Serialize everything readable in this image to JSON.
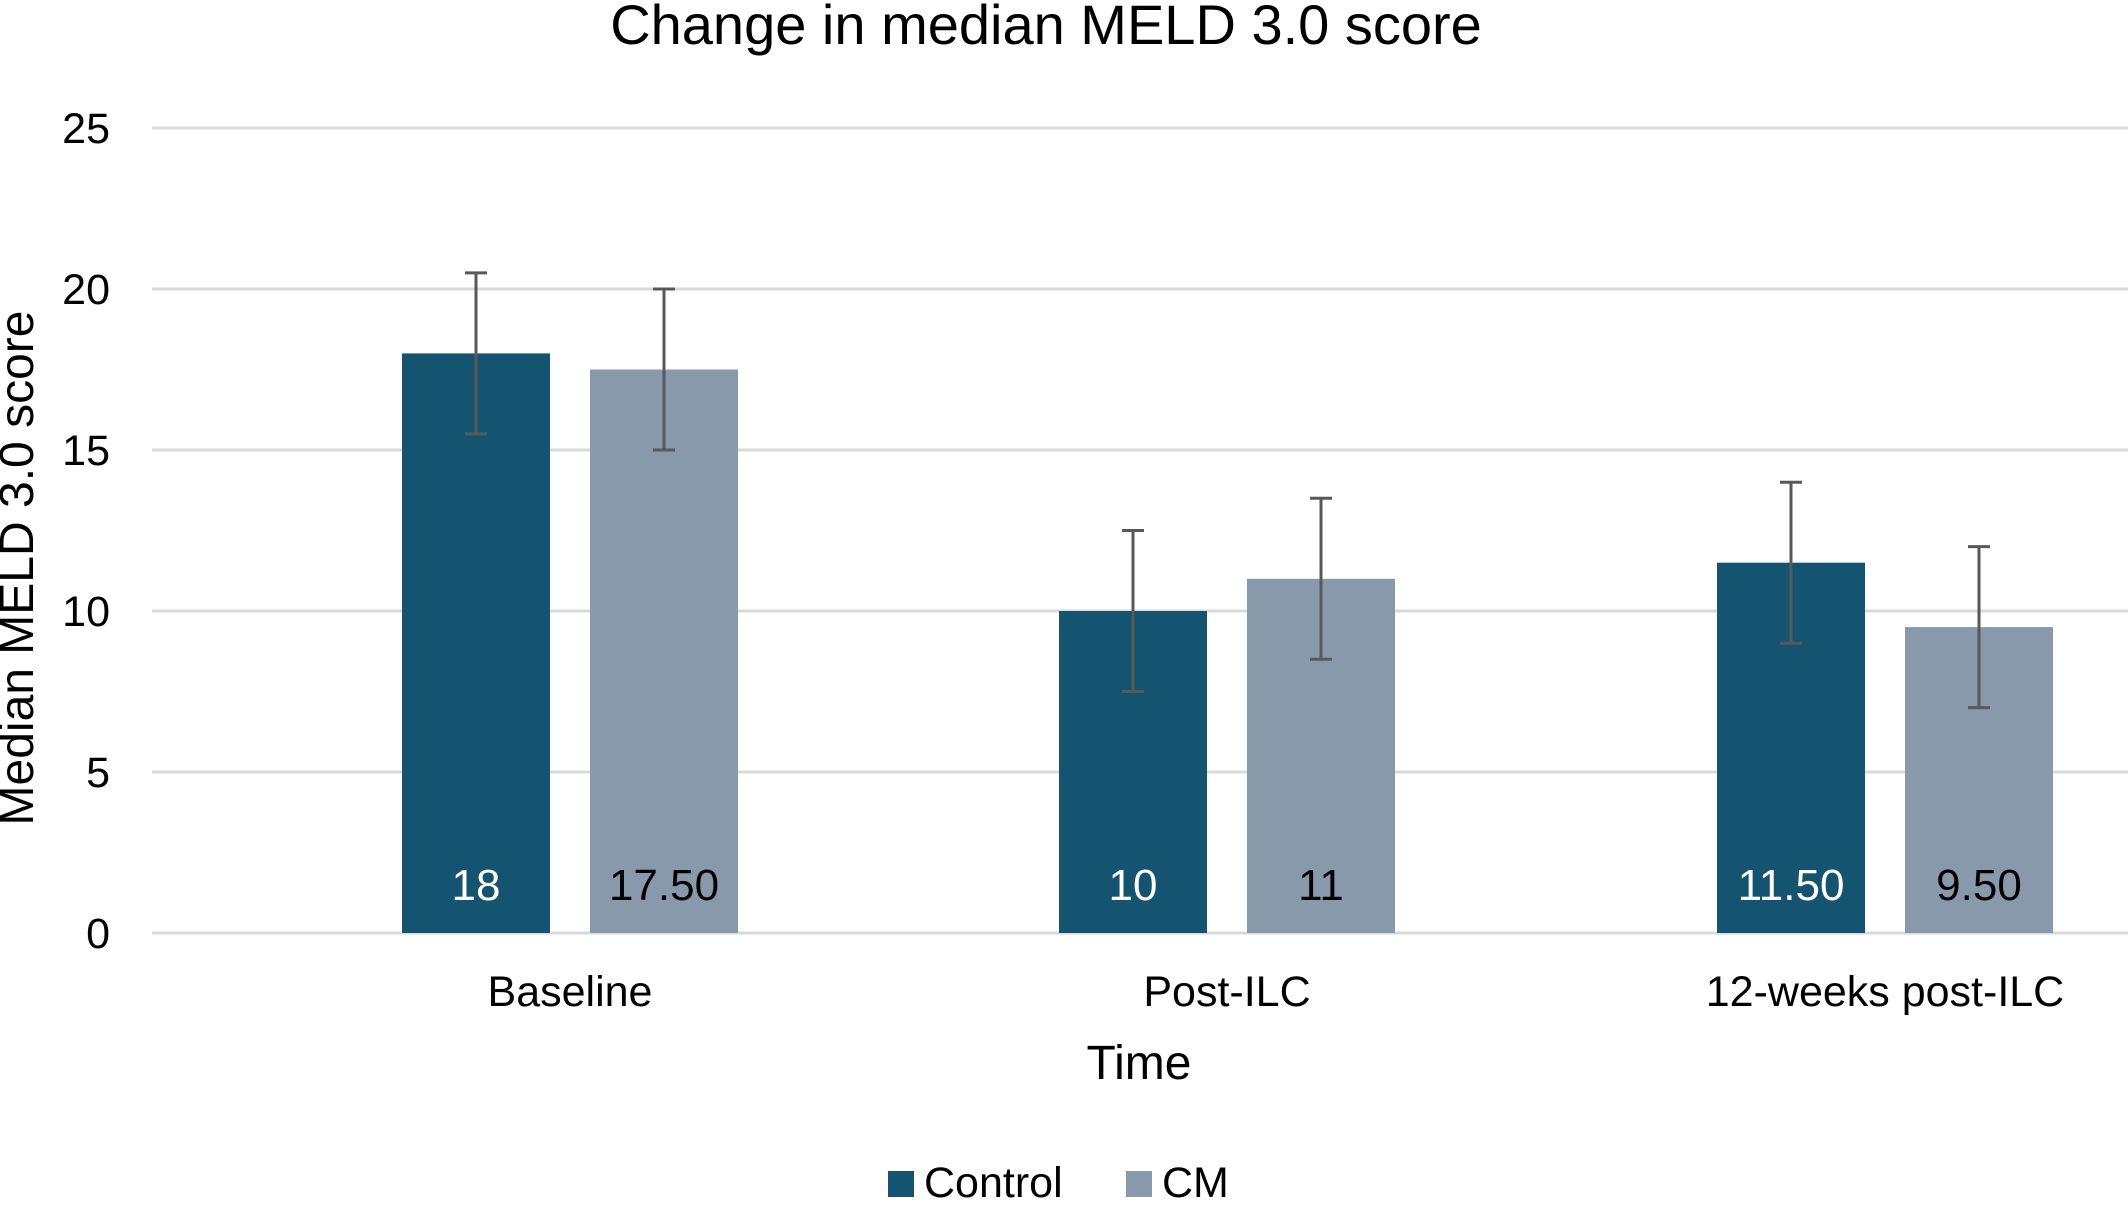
{
  "chart_data": {
    "type": "bar",
    "title": "Change in median MELD 3.0 score",
    "xlabel": "Time",
    "ylabel": "Median MELD 3.0 score",
    "categories": [
      "Baseline",
      "Post-ILC",
      "12-weeks post-ILC"
    ],
    "series": [
      {
        "name": "Control",
        "values": [
          18,
          10,
          11.5
        ],
        "labels": [
          "18",
          "10",
          "11.50"
        ],
        "error_bars": [
          2.5,
          2.5,
          2.5
        ],
        "color": "#155470",
        "label_color": "#ffffff"
      },
      {
        "name": "CM",
        "values": [
          17.5,
          11,
          9.5
        ],
        "labels": [
          "17.50",
          "11",
          "9.50"
        ],
        "error_bars": [
          2.5,
          2.5,
          2.5
        ],
        "color": "#8799aa",
        "label_color": "#000000"
      }
    ],
    "ylim": [
      0,
      25
    ],
    "yticks": [
      "0",
      "5",
      "10",
      "15",
      "20",
      "25"
    ],
    "grid": true,
    "legend_position": "bottom",
    "grid_color": "#d9d9d9",
    "error_bar_color": "#595959"
  }
}
